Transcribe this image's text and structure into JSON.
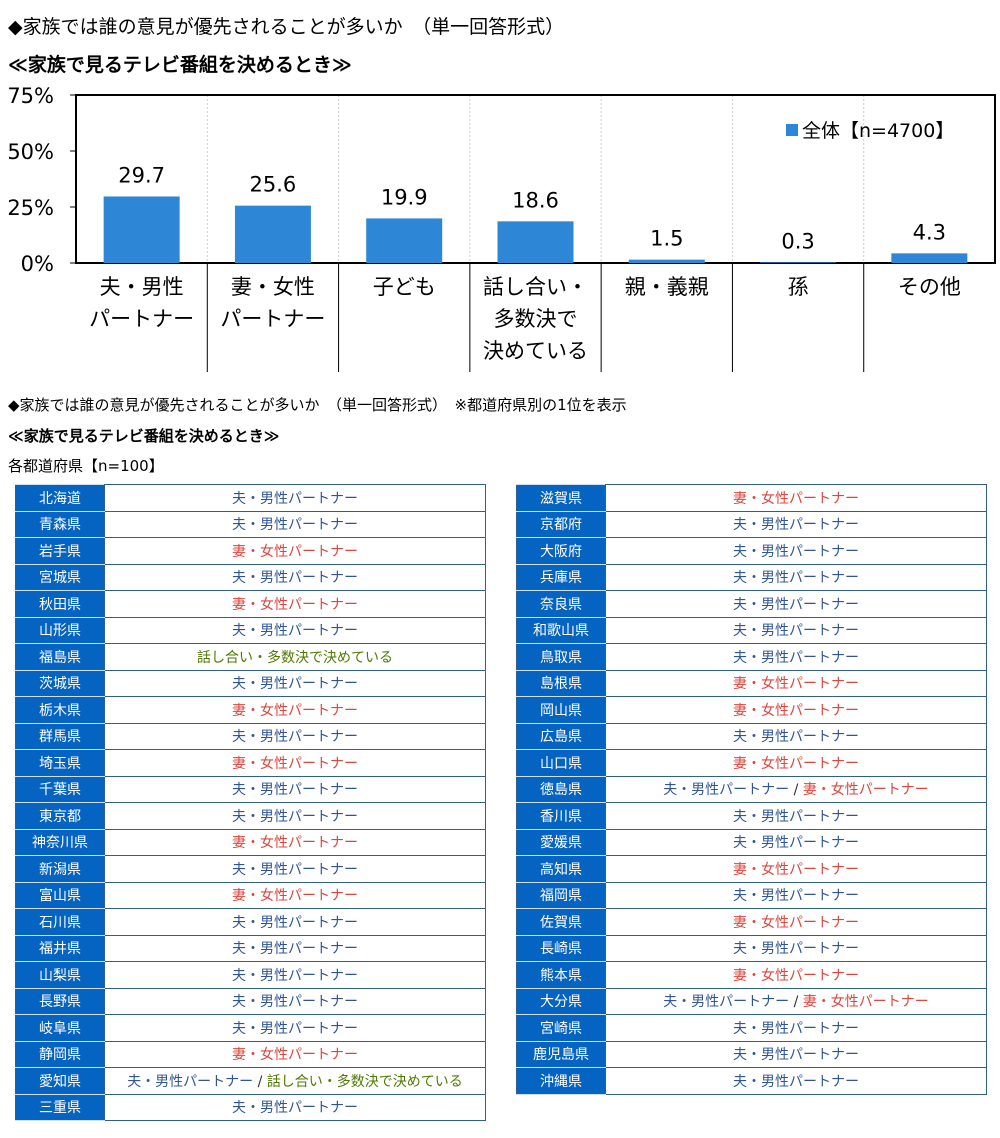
{
  "title1": "◆家族では誰の意見が優先されることが多いか　（単一回答形式）",
  "subtitle1": "≪家族で見るテレビ番組を決めるとき≫",
  "title2": "◆家族では誰の意見が優先されることが多いか　（単一回答形式）　※都道府県別の1位を表示",
  "subtitle2": "≪家族で見るテレビ番組を決めるとき≫",
  "table_label": "各都道府県【n=100】",
  "chart_data": {
    "type": "bar",
    "categories": [
      "夫・男性\nパートナー",
      "妻・女性\nパートナー",
      "子ども",
      "話し合い・\n多数決で\n決めている",
      "親・義親",
      "孫",
      "その他"
    ],
    "series": [
      {
        "name": "全体【n=4700】",
        "values": [
          29.7,
          25.6,
          19.9,
          18.6,
          1.5,
          0.3,
          4.3
        ]
      }
    ],
    "data_labels": [
      "29.7",
      "25.6",
      "19.9",
      "18.6",
      "1.5",
      "0.3",
      "4.3"
    ],
    "yticks": [
      "0%",
      "25%",
      "50%",
      "75%"
    ],
    "ylim": [
      0,
      75
    ],
    "legend_placement": "top-right",
    "bar_color": "#2e86d6"
  },
  "colors": {
    "夫・男性パートナー": "m",
    "妻・女性パートナー": "f",
    "話し合い・多数決で決めている": "d"
  },
  "separator": "/",
  "left": [
    [
      "北海道",
      [
        "夫・男性パートナー"
      ]
    ],
    [
      "青森県",
      [
        "夫・男性パートナー"
      ]
    ],
    [
      "岩手県",
      [
        "妻・女性パートナー"
      ]
    ],
    [
      "宮城県",
      [
        "夫・男性パートナー"
      ]
    ],
    [
      "秋田県",
      [
        "妻・女性パートナー"
      ]
    ],
    [
      "山形県",
      [
        "夫・男性パートナー"
      ]
    ],
    [
      "福島県",
      [
        "話し合い・多数決で決めている"
      ]
    ],
    [
      "茨城県",
      [
        "夫・男性パートナー"
      ]
    ],
    [
      "栃木県",
      [
        "妻・女性パートナー"
      ]
    ],
    [
      "群馬県",
      [
        "夫・男性パートナー"
      ]
    ],
    [
      "埼玉県",
      [
        "妻・女性パートナー"
      ]
    ],
    [
      "千葉県",
      [
        "夫・男性パートナー"
      ]
    ],
    [
      "東京都",
      [
        "夫・男性パートナー"
      ]
    ],
    [
      "神奈川県",
      [
        "妻・女性パートナー"
      ]
    ],
    [
      "新潟県",
      [
        "夫・男性パートナー"
      ]
    ],
    [
      "富山県",
      [
        "妻・女性パートナー"
      ]
    ],
    [
      "石川県",
      [
        "夫・男性パートナー"
      ]
    ],
    [
      "福井県",
      [
        "夫・男性パートナー"
      ]
    ],
    [
      "山梨県",
      [
        "夫・男性パートナー"
      ]
    ],
    [
      "長野県",
      [
        "夫・男性パートナー"
      ]
    ],
    [
      "岐阜県",
      [
        "夫・男性パートナー"
      ]
    ],
    [
      "静岡県",
      [
        "妻・女性パートナー"
      ]
    ],
    [
      "愛知県",
      [
        "夫・男性パートナー",
        "話し合い・多数決で決めている"
      ]
    ],
    [
      "三重県",
      [
        "夫・男性パートナー"
      ]
    ]
  ],
  "right": [
    [
      "滋賀県",
      [
        "妻・女性パートナー"
      ]
    ],
    [
      "京都府",
      [
        "夫・男性パートナー"
      ]
    ],
    [
      "大阪府",
      [
        "夫・男性パートナー"
      ]
    ],
    [
      "兵庫県",
      [
        "夫・男性パートナー"
      ]
    ],
    [
      "奈良県",
      [
        "夫・男性パートナー"
      ]
    ],
    [
      "和歌山県",
      [
        "夫・男性パートナー"
      ]
    ],
    [
      "鳥取県",
      [
        "夫・男性パートナー"
      ]
    ],
    [
      "島根県",
      [
        "妻・女性パートナー"
      ]
    ],
    [
      "岡山県",
      [
        "妻・女性パートナー"
      ]
    ],
    [
      "広島県",
      [
        "夫・男性パートナー"
      ]
    ],
    [
      "山口県",
      [
        "妻・女性パートナー"
      ]
    ],
    [
      "徳島県",
      [
        "夫・男性パートナー",
        "妻・女性パートナー"
      ]
    ],
    [
      "香川県",
      [
        "夫・男性パートナー"
      ]
    ],
    [
      "愛媛県",
      [
        "夫・男性パートナー"
      ]
    ],
    [
      "高知県",
      [
        "妻・女性パートナー"
      ]
    ],
    [
      "福岡県",
      [
        "夫・男性パートナー"
      ]
    ],
    [
      "佐賀県",
      [
        "妻・女性パートナー"
      ]
    ],
    [
      "長崎県",
      [
        "夫・男性パートナー"
      ]
    ],
    [
      "熊本県",
      [
        "妻・女性パートナー"
      ]
    ],
    [
      "大分県",
      [
        "夫・男性パートナー",
        "妻・女性パートナー"
      ]
    ],
    [
      "宮崎県",
      [
        "夫・男性パートナー"
      ]
    ],
    [
      "鹿児島県",
      [
        "夫・男性パートナー"
      ]
    ],
    [
      "沖縄県",
      [
        "夫・男性パートナー"
      ]
    ]
  ]
}
